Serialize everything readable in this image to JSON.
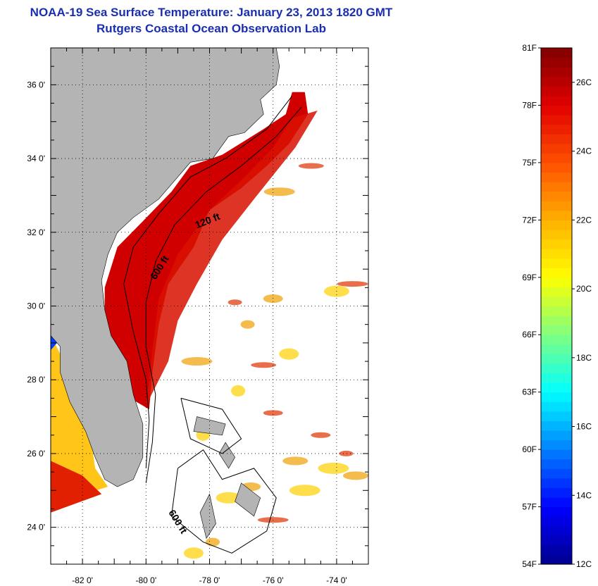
{
  "title": {
    "line1": "NOAA-19 Sea Surface Temperature:  January 23, 2013 1820 GMT",
    "line2": "Rutgers Coastal Ocean Observation Lab"
  },
  "map": {
    "lon_range": [
      -83.0,
      -73.0
    ],
    "lat_range": [
      23.0,
      37.0
    ],
    "lon_ticks": [
      {
        "value": -82,
        "label": "-82 0'"
      },
      {
        "value": -80,
        "label": "-80 0'"
      },
      {
        "value": -78,
        "label": "-78 0'"
      },
      {
        "value": -76,
        "label": "-76 0'"
      },
      {
        "value": -74,
        "label": "-74 0'"
      }
    ],
    "lat_ticks": [
      {
        "value": 24,
        "label": "24 0'"
      },
      {
        "value": 26,
        "label": "26 0'"
      },
      {
        "value": 28,
        "label": "28 0'"
      },
      {
        "value": 30,
        "label": "30 0'"
      },
      {
        "value": 32,
        "label": "32 0'"
      },
      {
        "value": 34,
        "label": "34 0'"
      },
      {
        "value": 36,
        "label": "36 0'"
      }
    ],
    "grid": "dotted",
    "contour_labels": [
      "120 ft",
      "600 ft",
      "600 ft"
    ],
    "colors": {
      "land": "#b4b4b4",
      "no_data": "#ffffff",
      "contour": "#000000",
      "title": "#1a2fb0"
    }
  },
  "colorbar": {
    "range_f": [
      54,
      81
    ],
    "range_c": [
      12,
      27
    ],
    "f_labels": [
      "81F",
      "78F",
      "75F",
      "72F",
      "69F",
      "66F",
      "63F",
      "60F",
      "57F",
      "54F"
    ],
    "c_labels": [
      "26C",
      "24C",
      "22C",
      "20C",
      "18C",
      "16C",
      "14C",
      "12C"
    ],
    "colors": [
      "#00008f",
      "#0000ff",
      "#0080ff",
      "#00ffff",
      "#80ff80",
      "#ffff00",
      "#ffb000",
      "#ff5000",
      "#e00000",
      "#800000"
    ]
  }
}
